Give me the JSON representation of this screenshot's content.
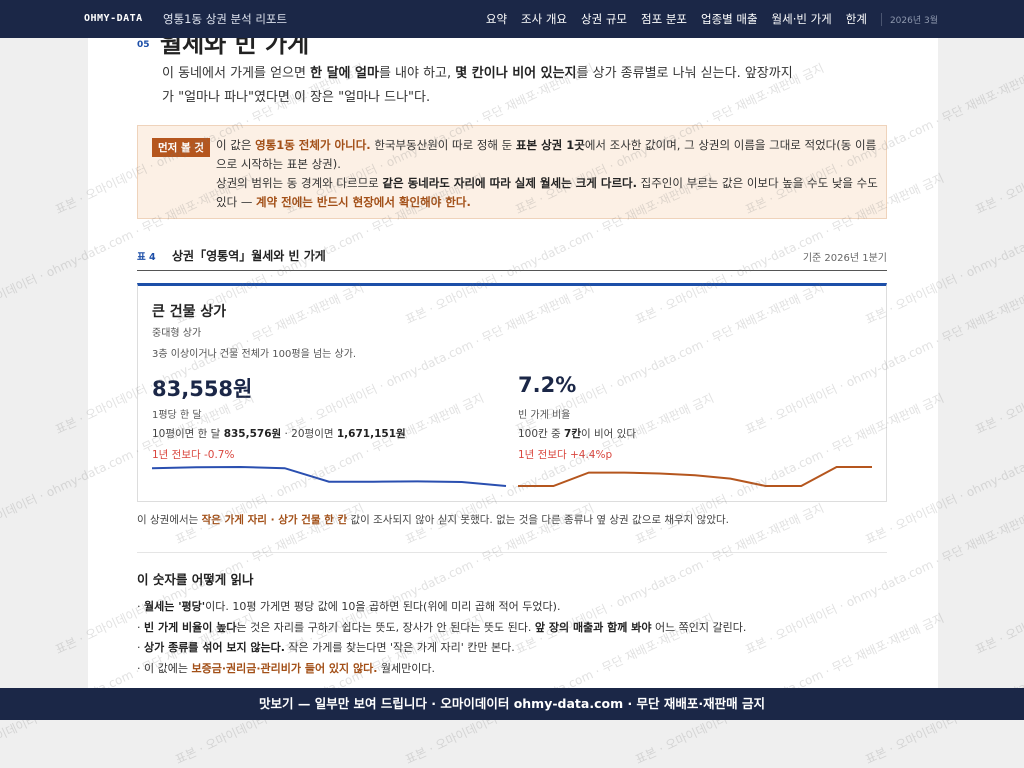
{
  "nav": {
    "brand": "OHMY-DATA",
    "report": "영통1동 상권 분석 리포트",
    "items": [
      "요약",
      "조사 개요",
      "상권 규모",
      "점포 분포",
      "업종별 매출",
      "월세·빈 가게",
      "한계"
    ],
    "date": "2026년 3월"
  },
  "section": {
    "number": "05",
    "title": "월세와 빈 가게",
    "intro": [
      "이 동네에서 가게를 얻으면 ",
      "한 달에 얼마",
      "를 내야 하고, ",
      "몇 칸이나 비어 있는지",
      "를 상가 종류별로 나눠 싣는다. 앞장까지가 \"얼마나 파나\"였다면 이 장은 \"얼마나 드나\"다."
    ]
  },
  "notice": {
    "badge": "먼저 볼 것",
    "lines": [
      [
        "이 값은 ",
        "영통1동 전체가 아니다.",
        " 한국부동산원이 따로 정해 둔 ",
        "표본 상권 1곳",
        "에서 조사한 값이며, 그 상권의 이름을 그대로 적었다(동 이름으로 시작하는 표본 상권)."
      ],
      [
        "상권의 범위는 동 경계와 다르므로 ",
        "같은 동네라도 자리에 따라 실제 월세는 크게 다르다.",
        " 집주인이 부르는 값은 이보다 높을 수도 낮을 수도 있다 — ",
        "계약 전에는 반드시 현장에서 확인해야 한다."
      ]
    ]
  },
  "table": {
    "label": "표 4",
    "title": "상권「영통역」월세와 빈 가게",
    "basis": "기준 2026년 1분기"
  },
  "card": {
    "title": "큰 건물 상가",
    "subtitle": "중대형 상가",
    "desc": "3층 이상이거나 건물 전체가 100평을 넘는 상가.",
    "rent": {
      "value": "83,558원",
      "label": "1평당 한 달",
      "detail": [
        "10평이면 한 달 ",
        "835,576원",
        " · 20평이면 ",
        "1,671,151원"
      ],
      "change": "1년 전보다 -0.7%",
      "color": "#2a4fb0",
      "trend": [
        84150,
        84180,
        84190,
        84150,
        83700,
        83700,
        83710,
        83690,
        83558
      ]
    },
    "vacancy": {
      "value": "7.2%",
      "label": "빈 가게 비율",
      "detail": [
        "100칸 중 ",
        "7칸",
        "이 비어 있다"
      ],
      "change": "1년 전보다 +4.4%p",
      "color": "#b5561e",
      "trend": [
        2.8,
        2.8,
        5.9,
        5.9,
        5.7,
        5.3,
        4.5,
        2.8,
        2.8,
        7.2,
        7.2
      ]
    }
  },
  "footnote": [
    "이 상권에서는 ",
    "작은 가게 자리 · 상가 건물 한 칸",
    " 값이 조사되지 않아 싣지 못했다. 없는 것을 다른 종류나 옆 상권 값으로 채우지 않았다."
  ],
  "guide": {
    "title": "이 숫자를 어떻게 읽나",
    "items": [
      [
        "· ",
        "월세는 '평당'",
        "이다. 10평 가게면 평당 값에 10을 곱하면 된다(위에 미리 곱해 적어 두었다)."
      ],
      [
        "· ",
        "빈 가게 비율이 높다",
        "는 것은 자리를 구하기 쉽다는 뜻도, 장사가 안 된다는 뜻도 된다. ",
        "앞 장의 매출과 함께 봐야",
        " 어느 쪽인지 갈린다."
      ],
      [
        "· ",
        "상가 종류를 섞어 보지 않는다.",
        " 작은 가게를 찾는다면 '작은 가게 자리' 칸만 본다."
      ],
      [
        "· 이 값에는 ",
        "보증금·권리금·관리비가 들어 있지 않다.",
        " 월세만이다."
      ]
    ]
  },
  "watermark": "표본 · 오마이데이터 · ohmy-data.com · 무단 재배포·재판매 금지",
  "banner": "맛보기 — 일부만 보여 드립니다 · 오마이데이터 ohmy-data.com · 무단 재배포·재판매 금지"
}
